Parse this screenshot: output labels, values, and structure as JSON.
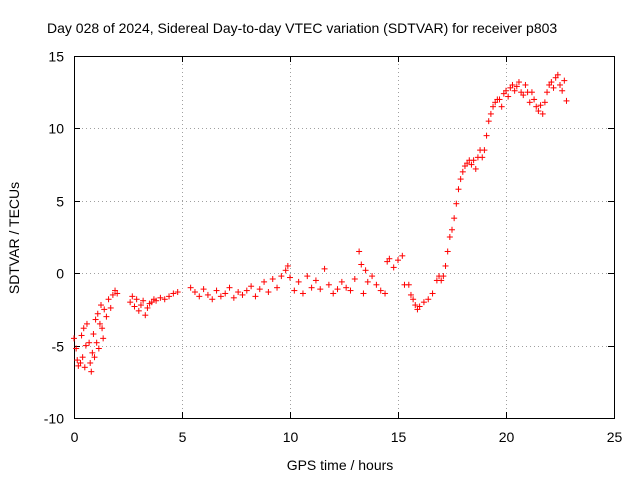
{
  "chart_data": {
    "type": "scatter",
    "title": "Day 028 of 2024, Sidereal Day-to-day VTEC variation (SDTVAR) for receiver p803",
    "xlabel": "GPS time / hours",
    "ylabel": "SDTVAR / TECUs",
    "xlim": [
      0,
      25
    ],
    "ylim": [
      -10,
      15
    ],
    "xticks": [
      0,
      5,
      10,
      15,
      20,
      25
    ],
    "yticks": [
      -10,
      -5,
      0,
      5,
      10,
      15
    ],
    "grid": true,
    "marker": "+",
    "color": "#ff0000",
    "series": [
      {
        "name": "SDTVAR",
        "points": [
          [
            0.0,
            -4.5
          ],
          [
            0.1,
            -5.2
          ],
          [
            0.15,
            -6.0
          ],
          [
            0.2,
            -6.4
          ],
          [
            0.3,
            -6.2
          ],
          [
            0.35,
            -4.3
          ],
          [
            0.4,
            -5.8
          ],
          [
            0.45,
            -3.8
          ],
          [
            0.5,
            -6.5
          ],
          [
            0.55,
            -5.0
          ],
          [
            0.6,
            -3.5
          ],
          [
            0.7,
            -4.8
          ],
          [
            0.75,
            -6.2
          ],
          [
            0.8,
            -6.8
          ],
          [
            0.85,
            -5.5
          ],
          [
            0.9,
            -4.2
          ],
          [
            0.95,
            -5.8
          ],
          [
            1.0,
            -3.2
          ],
          [
            1.05,
            -4.8
          ],
          [
            1.1,
            -2.8
          ],
          [
            1.15,
            -5.2
          ],
          [
            1.2,
            -3.5
          ],
          [
            1.25,
            -2.2
          ],
          [
            1.3,
            -3.8
          ],
          [
            1.35,
            -4.5
          ],
          [
            1.4,
            -2.5
          ],
          [
            1.5,
            -3.0
          ],
          [
            1.6,
            -1.8
          ],
          [
            1.7,
            -2.4
          ],
          [
            1.8,
            -1.5
          ],
          [
            1.9,
            -1.2
          ],
          [
            2.0,
            -1.4
          ],
          [
            2.6,
            -2.0
          ],
          [
            2.7,
            -1.6
          ],
          [
            2.8,
            -2.3
          ],
          [
            2.9,
            -1.8
          ],
          [
            3.0,
            -2.6
          ],
          [
            3.1,
            -2.2
          ],
          [
            3.2,
            -1.9
          ],
          [
            3.3,
            -2.9
          ],
          [
            3.4,
            -2.4
          ],
          [
            3.5,
            -2.1
          ],
          [
            3.6,
            -2.0
          ],
          [
            3.7,
            -1.8
          ],
          [
            3.8,
            -1.9
          ],
          [
            4.0,
            -1.7
          ],
          [
            4.2,
            -1.8
          ],
          [
            4.4,
            -1.6
          ],
          [
            4.6,
            -1.4
          ],
          [
            4.8,
            -1.3
          ],
          [
            5.4,
            -1.0
          ],
          [
            5.6,
            -1.3
          ],
          [
            5.8,
            -1.6
          ],
          [
            6.0,
            -1.1
          ],
          [
            6.2,
            -1.5
          ],
          [
            6.4,
            -1.8
          ],
          [
            6.6,
            -1.2
          ],
          [
            6.8,
            -1.6
          ],
          [
            7.0,
            -1.4
          ],
          [
            7.2,
            -1.0
          ],
          [
            7.4,
            -1.7
          ],
          [
            7.6,
            -1.3
          ],
          [
            7.8,
            -1.5
          ],
          [
            8.0,
            -1.2
          ],
          [
            8.2,
            -0.9
          ],
          [
            8.4,
            -1.6
          ],
          [
            8.6,
            -1.1
          ],
          [
            8.8,
            -0.6
          ],
          [
            9.0,
            -1.3
          ],
          [
            9.2,
            -0.4
          ],
          [
            9.4,
            -1.0
          ],
          [
            9.6,
            -0.2
          ],
          [
            9.8,
            0.2
          ],
          [
            9.9,
            0.5
          ],
          [
            10.0,
            -0.3
          ],
          [
            10.2,
            -1.2
          ],
          [
            10.4,
            -0.6
          ],
          [
            10.6,
            -1.4
          ],
          [
            10.8,
            -0.2
          ],
          [
            11.0,
            -1.0
          ],
          [
            11.2,
            -0.5
          ],
          [
            11.4,
            -1.1
          ],
          [
            11.6,
            0.3
          ],
          [
            11.8,
            -0.8
          ],
          [
            12.0,
            -1.4
          ],
          [
            12.2,
            -1.1
          ],
          [
            12.4,
            -0.6
          ],
          [
            12.6,
            -1.0
          ],
          [
            12.8,
            -1.2
          ],
          [
            13.0,
            -0.4
          ],
          [
            13.2,
            1.5
          ],
          [
            13.3,
            0.6
          ],
          [
            13.4,
            -1.4
          ],
          [
            13.5,
            0.2
          ],
          [
            13.6,
            -0.6
          ],
          [
            13.8,
            -0.2
          ],
          [
            14.0,
            -0.8
          ],
          [
            14.2,
            -1.2
          ],
          [
            14.4,
            -1.4
          ],
          [
            14.5,
            0.8
          ],
          [
            14.6,
            1.0
          ],
          [
            14.8,
            0.4
          ],
          [
            15.0,
            0.9
          ],
          [
            15.2,
            1.2
          ],
          [
            15.3,
            -0.8
          ],
          [
            15.5,
            -0.8
          ],
          [
            15.6,
            -1.5
          ],
          [
            15.7,
            -1.8
          ],
          [
            15.8,
            -2.2
          ],
          [
            15.9,
            -2.5
          ],
          [
            16.0,
            -2.3
          ],
          [
            16.2,
            -2.0
          ],
          [
            16.4,
            -1.8
          ],
          [
            16.6,
            -1.4
          ],
          [
            16.8,
            -0.5
          ],
          [
            16.9,
            -0.2
          ],
          [
            17.0,
            -0.5
          ],
          [
            17.1,
            -0.2
          ],
          [
            17.2,
            0.5
          ],
          [
            17.3,
            1.5
          ],
          [
            17.4,
            2.5
          ],
          [
            17.5,
            3.0
          ],
          [
            17.6,
            3.8
          ],
          [
            17.7,
            4.8
          ],
          [
            17.8,
            5.8
          ],
          [
            17.9,
            6.5
          ],
          [
            18.0,
            7.0
          ],
          [
            18.1,
            7.4
          ],
          [
            18.2,
            7.6
          ],
          [
            18.3,
            7.8
          ],
          [
            18.4,
            7.5
          ],
          [
            18.5,
            7.8
          ],
          [
            18.6,
            7.2
          ],
          [
            18.7,
            8.0
          ],
          [
            18.8,
            8.5
          ],
          [
            18.9,
            8.0
          ],
          [
            19.0,
            8.5
          ],
          [
            19.1,
            9.5
          ],
          [
            19.2,
            10.5
          ],
          [
            19.3,
            11.0
          ],
          [
            19.4,
            11.5
          ],
          [
            19.5,
            11.8
          ],
          [
            19.6,
            12.0
          ],
          [
            19.7,
            12.0
          ],
          [
            19.8,
            11.5
          ],
          [
            19.9,
            12.4
          ],
          [
            20.0,
            12.6
          ],
          [
            20.1,
            12.2
          ],
          [
            20.2,
            12.8
          ],
          [
            20.3,
            13.0
          ],
          [
            20.4,
            12.6
          ],
          [
            20.5,
            12.9
          ],
          [
            20.6,
            13.2
          ],
          [
            20.7,
            12.5
          ],
          [
            20.8,
            12.3
          ],
          [
            20.9,
            13.0
          ],
          [
            21.0,
            12.5
          ],
          [
            21.1,
            11.8
          ],
          [
            21.2,
            12.5
          ],
          [
            21.3,
            12.0
          ],
          [
            21.4,
            11.5
          ],
          [
            21.5,
            11.2
          ],
          [
            21.6,
            11.6
          ],
          [
            21.7,
            11.0
          ],
          [
            21.8,
            11.8
          ],
          [
            21.9,
            12.5
          ],
          [
            22.0,
            13.0
          ],
          [
            22.1,
            13.2
          ],
          [
            22.2,
            12.8
          ],
          [
            22.3,
            13.5
          ],
          [
            22.4,
            13.7
          ],
          [
            22.5,
            13.0
          ],
          [
            22.6,
            12.6
          ],
          [
            22.7,
            13.3
          ],
          [
            22.8,
            11.9
          ]
        ]
      }
    ]
  }
}
